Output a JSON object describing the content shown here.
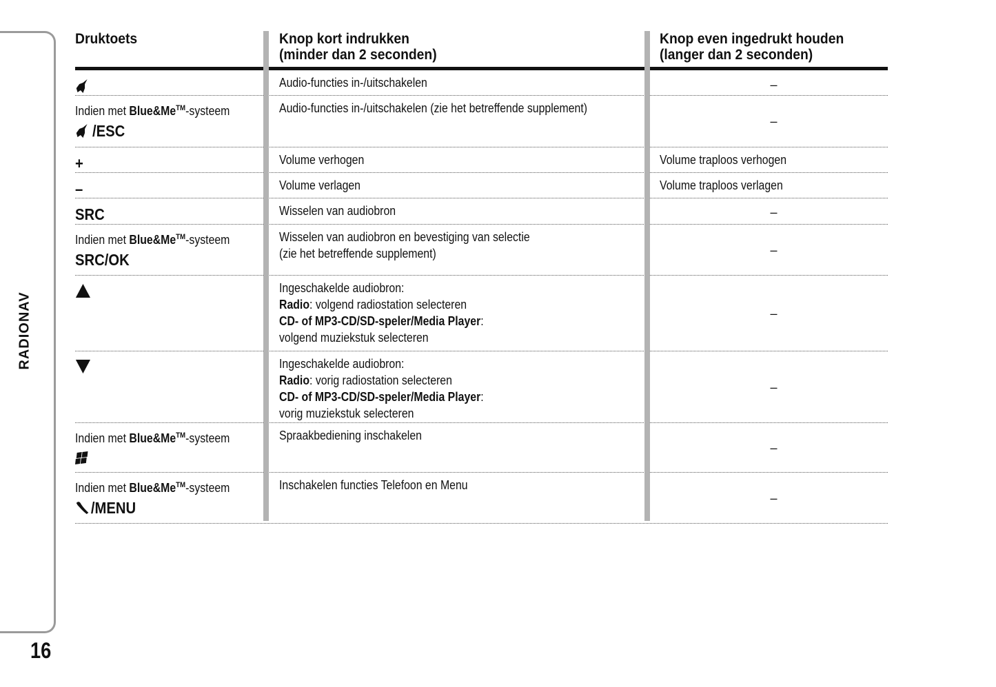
{
  "side_tab": {
    "label": "RADIONAV"
  },
  "page_number": "16",
  "table": {
    "headers": [
      "Druktoets",
      "Knop kort indrukken\n(minder dan 2 seconden)",
      "Knop even ingedrukt houden\n(langer dan 2 seconden)"
    ],
    "rows": [
      {
        "key": [
          [
            {
              "icon": "mute-icon"
            }
          ]
        ],
        "short": [
          [
            {
              "t": "Audio-functies in-/uitschakelen"
            }
          ]
        ],
        "long": "–"
      },
      {
        "key": [
          [
            {
              "t": "Indien met "
            },
            {
              "t": "Blue&Me",
              "b": true
            },
            {
              "t": "TM",
              "b": true,
              "sup": true
            },
            {
              "t": "-systeem"
            }
          ],
          [
            {
              "icon": "mute-icon"
            },
            {
              "t": " /ESC",
              "k": true
            }
          ]
        ],
        "short": [
          [
            {
              "t": "Audio-functies in-/uitschakelen (zie het betreffende supplement)"
            }
          ]
        ],
        "long": "–"
      },
      {
        "key": [
          [
            {
              "t": "+",
              "k": true
            }
          ]
        ],
        "short": [
          [
            {
              "t": "Volume verhogen"
            }
          ]
        ],
        "long": "Volume traploos verhogen"
      },
      {
        "key": [
          [
            {
              "t": "–",
              "k": true
            }
          ]
        ],
        "short": [
          [
            {
              "t": "Volume verlagen"
            }
          ]
        ],
        "long": "Volume traploos verlagen"
      },
      {
        "key": [
          [
            {
              "t": "SRC",
              "k": true
            }
          ]
        ],
        "short": [
          [
            {
              "t": "Wisselen van audiobron"
            }
          ]
        ],
        "long": "–"
      },
      {
        "key": [
          [
            {
              "t": "Indien met "
            },
            {
              "t": "Blue&Me",
              "b": true
            },
            {
              "t": "TM",
              "b": true,
              "sup": true
            },
            {
              "t": "-systeem"
            }
          ],
          [
            {
              "t": "SRC/OK",
              "k": true
            }
          ]
        ],
        "short": [
          [
            {
              "t": "Wisselen van audiobron en bevestiging van selectie"
            }
          ],
          [
            {
              "t": "(zie het betreffende supplement)"
            }
          ]
        ],
        "long": "–"
      },
      {
        "key": [
          [
            {
              "icon": "up-triangle-icon"
            }
          ]
        ],
        "short": [
          [
            {
              "t": "Ingeschakelde audiobron:"
            }
          ],
          [
            {
              "t": "Radio",
              "b": true
            },
            {
              "t": ": volgend radiostation selecteren"
            }
          ],
          [
            {
              "t": "CD- of MP3-CD/SD-speler/Media Player",
              "b": true
            },
            {
              "t": ":"
            }
          ],
          [
            {
              "t": "volgend muziekstuk selecteren"
            }
          ]
        ],
        "long": "–"
      },
      {
        "key": [
          [
            {
              "icon": "down-triangle-icon"
            }
          ]
        ],
        "short": [
          [
            {
              "t": "Ingeschakelde audiobron:"
            }
          ],
          [
            {
              "t": "Radio",
              "b": true
            },
            {
              "t": ": vorig radiostation selecteren"
            }
          ],
          [
            {
              "t": "CD- of MP3-CD/SD-speler/Media Player",
              "b": true
            },
            {
              "t": ":"
            }
          ],
          [
            {
              "t": "vorig muziekstuk selecteren"
            }
          ]
        ],
        "long": "–"
      },
      {
        "key": [
          [
            {
              "t": "Indien met "
            },
            {
              "t": "Blue&Me",
              "b": true
            },
            {
              "t": "TM",
              "b": true,
              "sup": true
            },
            {
              "t": "-systeem"
            }
          ],
          [
            {
              "icon": "voice-command-icon"
            }
          ]
        ],
        "short": [
          [
            {
              "t": "Spraakbediening inschakelen"
            }
          ]
        ],
        "long": "–"
      },
      {
        "key": [
          [
            {
              "t": "Indien met "
            },
            {
              "t": "Blue&Me",
              "b": true
            },
            {
              "t": "TM",
              "b": true,
              "sup": true
            },
            {
              "t": "-systeem"
            }
          ],
          [
            {
              "icon": "phone-icon"
            },
            {
              "t": "/MENU",
              "k": true
            }
          ]
        ],
        "short": [
          [
            {
              "t": "Inschakelen functies Telefoon en Menu"
            }
          ]
        ],
        "long": "–"
      }
    ]
  }
}
